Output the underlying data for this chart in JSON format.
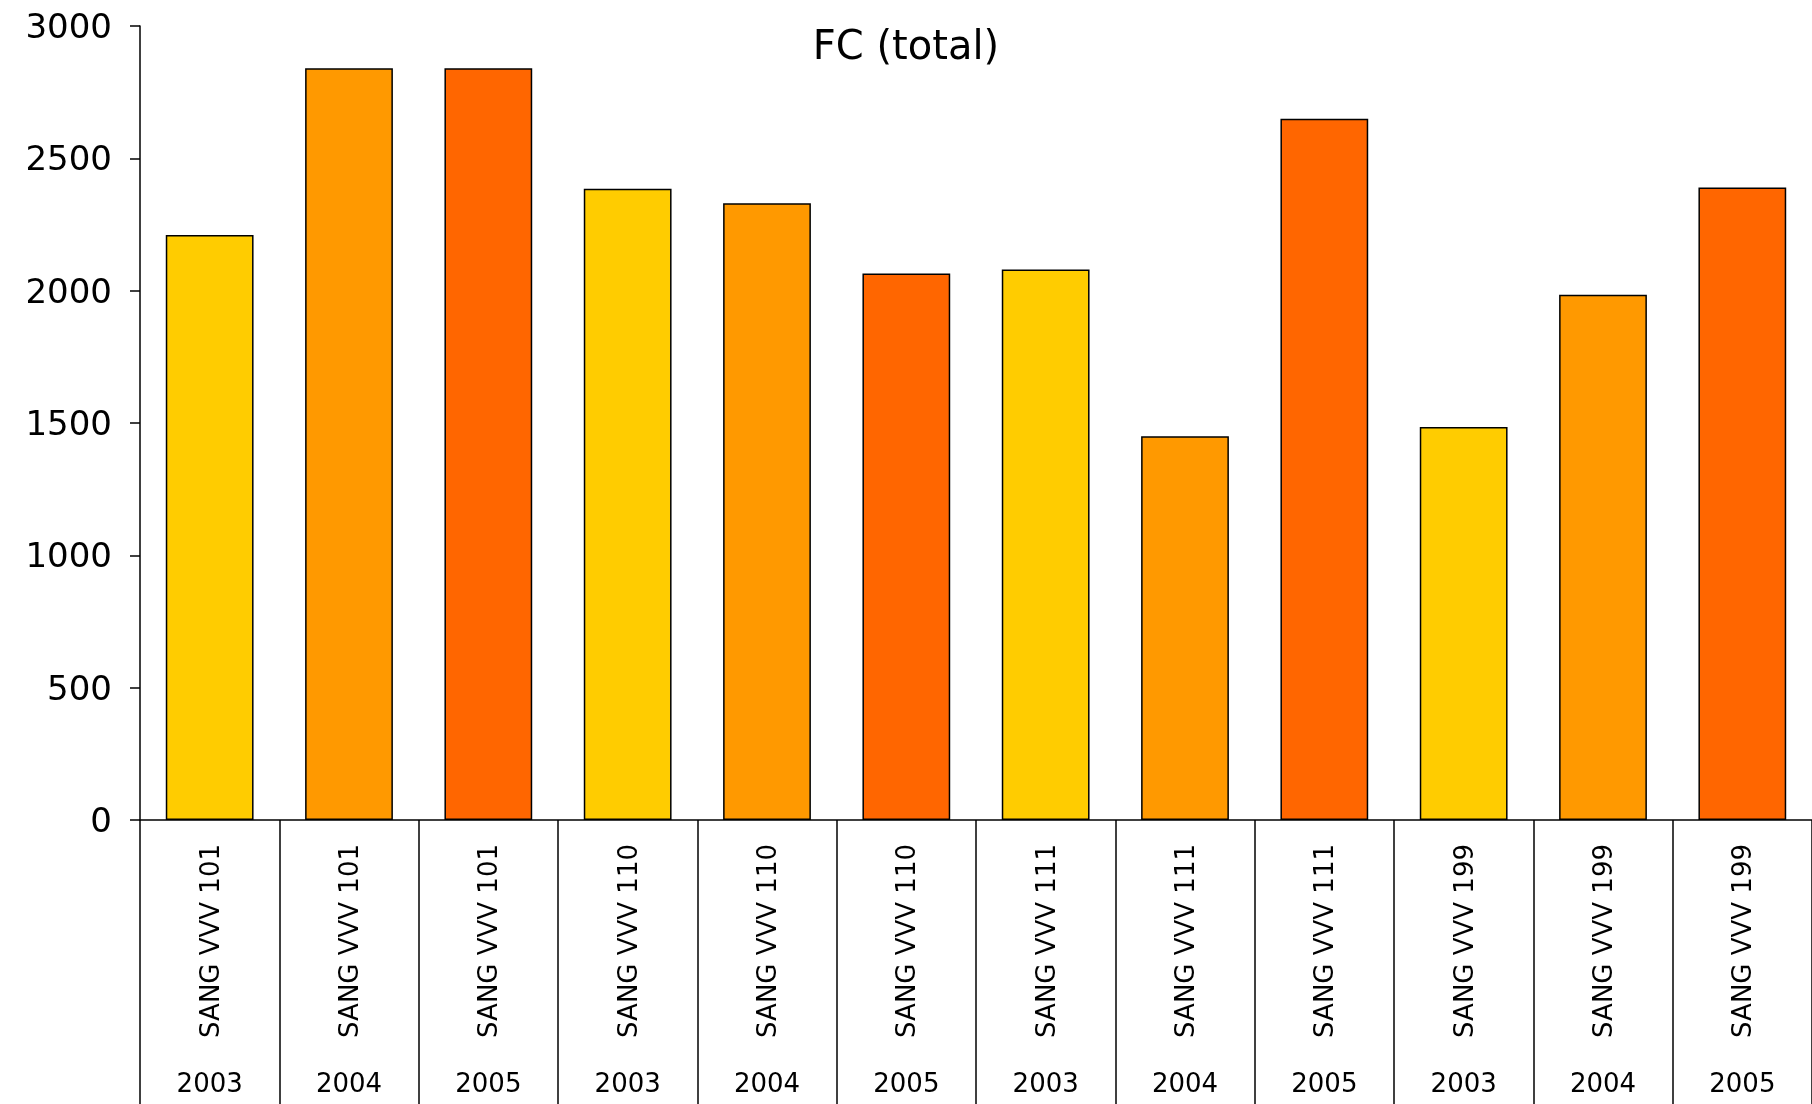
{
  "chart_data": {
    "type": "bar",
    "title": "FC (total)",
    "categories": [
      "SANG VVV 101\n2003",
      "SANG VVV 101\n2004",
      "SANG VVV 101\n2005",
      "SANG VVV 110\n2003",
      "SANG VVV 110\n2004",
      "SANG VVV 110\n2005",
      "SANG VVV 111\n2003",
      "SANG VVV 111\n2004",
      "SANG VVV 111\n2005",
      "SANG VVV 199\n2003",
      "SANG VVV 199\n2004",
      "SANG VVV 199\n2005"
    ],
    "values": [
      2210,
      2840,
      2840,
      2385,
      2330,
      2065,
      2080,
      1450,
      2650,
      1485,
      1985,
      2390
    ],
    "colors": [
      "#ffcc00",
      "#ff9900",
      "#ff6600",
      "#ffcc00",
      "#ff9900",
      "#ff6600",
      "#ffcc00",
      "#ff9900",
      "#ff6600",
      "#ffcc00",
      "#ff9900",
      "#ff6600"
    ],
    "ylim": [
      0,
      3000
    ],
    "yticks": [
      0,
      500,
      1000,
      1500,
      2000,
      2500,
      3000
    ]
  }
}
